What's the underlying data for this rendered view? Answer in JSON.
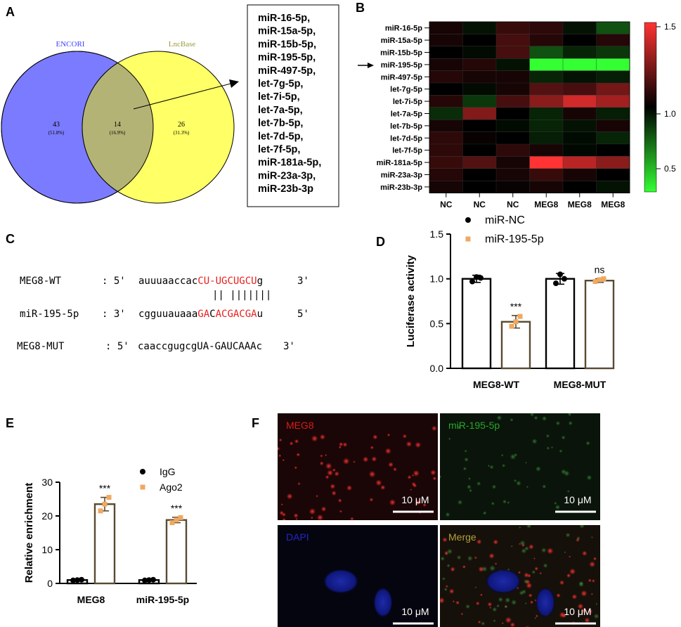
{
  "panels": {
    "A": {
      "letter": "A",
      "venn": {
        "left_name": "ENCORI",
        "right_name": "LncBase",
        "left_count": "43",
        "left_pct": "(51.8%)",
        "mid_count": "14",
        "mid_pct": "(16.9%)",
        "right_count": "26",
        "right_pct": "(31.3%)",
        "left_color": "#7b7bff",
        "right_color": "#ffff66",
        "overlap_color": "#b3b376"
      },
      "mirna_list": [
        "miR-16-5p,",
        "miR-15a-5p,",
        "miR-15b-5p,",
        "miR-195-5p,",
        "miR-497-5p,",
        "let-7g-5p,",
        "let-7i-5p,",
        "let-7a-5p,",
        "let-7b-5p,",
        "let-7d-5p,",
        "let-7f-5p,",
        "miR-181a-5p,",
        "miR-23a-3p,",
        "miR-23b-3p"
      ]
    },
    "B": {
      "letter": "B",
      "rows": [
        "miR-16-5p",
        "miR-15a-5p",
        "miR-15b-5p",
        "miR-195-5p",
        "miR-497-5p",
        "let-7g-5p",
        "let-7i-5p",
        "let-7a-5p",
        "let-7b-5p",
        "let-7d-5p",
        "let-7f-5p",
        "miR-181a-5p",
        "miR-23a-3p",
        "miR-23b-3p"
      ],
      "cols": [
        "NC",
        "NC",
        "NC",
        "MEG8",
        "MEG8",
        "MEG8"
      ],
      "values": [
        [
          1.05,
          0.95,
          1.12,
          1.1,
          0.95,
          0.78
        ],
        [
          1.05,
          1.0,
          1.15,
          1.08,
          1.0,
          1.08
        ],
        [
          1.0,
          0.97,
          1.15,
          0.78,
          0.9,
          0.85
        ],
        [
          1.05,
          1.08,
          0.95,
          0.3,
          0.3,
          0.3
        ],
        [
          1.08,
          1.05,
          1.05,
          0.9,
          0.95,
          0.92
        ],
        [
          1.0,
          0.97,
          1.05,
          1.18,
          1.15,
          1.25
        ],
        [
          1.08,
          0.85,
          1.15,
          1.3,
          1.45,
          1.35
        ],
        [
          0.88,
          1.28,
          1.0,
          0.9,
          1.05,
          0.92
        ],
        [
          1.05,
          1.0,
          0.97,
          0.9,
          0.95,
          1.05
        ],
        [
          1.1,
          1.02,
          1.0,
          0.92,
          0.97,
          0.9
        ],
        [
          1.1,
          1.0,
          1.1,
          1.05,
          0.98,
          1.0
        ],
        [
          1.12,
          1.18,
          1.05,
          1.55,
          1.4,
          1.3
        ],
        [
          1.08,
          1.0,
          1.05,
          1.12,
          1.05,
          1.0
        ],
        [
          1.05,
          1.0,
          1.02,
          1.05,
          1.0,
          0.95
        ]
      ],
      "colorbar_ticks": [
        "1.5",
        "1.0",
        "0.5"
      ],
      "scale_min": 0.3,
      "scale_max": 1.55,
      "low_color": "#33ff33",
      "mid_color": "#000000",
      "high_color": "#ff3333",
      "highlight_row": "miR-195-5p"
    },
    "C": {
      "letter": "C",
      "wt_name": "MEG8-WT",
      "wt_prefix": ": 5'",
      "wt_seq_black": "auuuaaccac",
      "wt_seq_red": "CU-UGCUGCU",
      "wt_seq_tail": "g",
      "wt_suffix": "3'",
      "pairing": "|| |||||||",
      "mir_name": "miR-195-5p",
      "mir_prefix": ": 3'",
      "mir_seq_black": "cgguuauaaa",
      "mir_seq_red1": "GA",
      "mir_seq_mid": "C",
      "mir_seq_red2": "ACGACGA",
      "mir_seq_tail": "u",
      "mir_suffix": "5'",
      "mut_name": "MEG8-MUT",
      "mut_prefix": ": 5'",
      "mut_seq": "caaccgugcgUA-GAUCAAAc",
      "mut_suffix": "3'",
      "red_color": "#e8211f"
    },
    "D": {
      "letter": "D",
      "chart_data": {
        "type": "bar",
        "categories": [
          "MEG8-WT",
          "MEG8-MUT"
        ],
        "series": [
          {
            "name": "miR-NC",
            "values": [
              1.0,
              1.0
            ],
            "points": [
              [
                0.97,
                1.02,
                1.01
              ],
              [
                0.95,
                1.05,
                1.0
              ]
            ],
            "err": [
              0.04,
              0.06
            ]
          },
          {
            "name": "miR-195-5p",
            "values": [
              0.52,
              0.98
            ],
            "points": [
              [
                0.47,
                0.52,
                0.58
              ],
              [
                0.97,
                0.99,
                1.0
              ]
            ],
            "err": [
              0.07,
              0.02
            ]
          }
        ],
        "ylabel": "Luciferase activity",
        "ylim": [
          0,
          1.5
        ],
        "yticks": [
          "0.0",
          "0.5",
          "1.0",
          "1.5"
        ],
        "annotations": [
          "***",
          "ns"
        ],
        "legend": [
          "miR-NC",
          "miR-195-5p"
        ],
        "colors": {
          "black": "#000000",
          "orange": "#f0a860",
          "bar_edge_2": "#5a4a32"
        }
      }
    },
    "E": {
      "letter": "E",
      "chart_data": {
        "type": "bar",
        "categories": [
          "MEG8",
          "miR-195-5p"
        ],
        "series": [
          {
            "name": "IgG",
            "values": [
              1.0,
              1.0
            ],
            "points": [
              [
                0.9,
                1.0,
                1.1
              ],
              [
                0.9,
                1.0,
                1.1
              ]
            ],
            "err": [
              0.1,
              0.1
            ]
          },
          {
            "name": "Ago2",
            "values": [
              23.5,
              18.8
            ],
            "points": [
              [
                21.5,
                23.5,
                25.5
              ],
              [
                18.0,
                18.8,
                19.5
              ]
            ],
            "err": [
              2.0,
              0.8
            ]
          }
        ],
        "ylabel": "Relative enrichment",
        "ylim": [
          0,
          30
        ],
        "yticks": [
          "0",
          "10",
          "20",
          "30"
        ],
        "annotations": [
          "***",
          "***"
        ],
        "legend": [
          "IgG",
          "Ago2"
        ],
        "colors": {
          "black": "#000000",
          "orange": "#f0a860",
          "bar_edge_2": "#5a4a32"
        }
      }
    },
    "F": {
      "letter": "F",
      "tiles": [
        {
          "label": "MEG8",
          "label_color": "#d81b1b",
          "scale": "10 μM"
        },
        {
          "label": "miR-195-5p",
          "label_color": "#2aa52a",
          "scale": "10 μM"
        },
        {
          "label": "DAPI",
          "label_color": "#2525c8",
          "scale": "10 μM"
        },
        {
          "label": "Merge",
          "label_color": "#b3a03a",
          "scale": "10 μM"
        }
      ]
    }
  }
}
